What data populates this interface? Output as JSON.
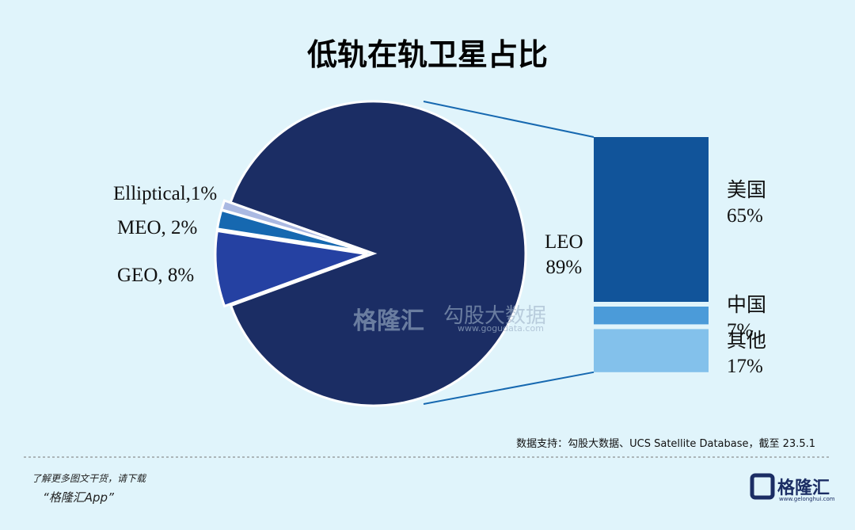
{
  "title": "低轨在轨卫星占比",
  "chart_data": [
    {
      "type": "pie",
      "categories": [
        "LEO",
        "GEO",
        "MEO",
        "Elliptical"
      ],
      "values": [
        89,
        8,
        2,
        1
      ],
      "value_labels": [
        "89%",
        "8%",
        "2%",
        "1%"
      ],
      "labels": [
        "LEO\n89%",
        "GEO, 8%",
        "MEO, 2%",
        "Elliptical,1%"
      ],
      "colors": [
        "#1b2d64",
        "#2541a2",
        "#1668b0",
        "#aab9e2"
      ]
    },
    {
      "type": "stacked-bar",
      "categories": [
        "美国",
        "中国",
        "其他"
      ],
      "values": [
        65,
        7,
        17
      ],
      "value_labels": [
        "65%",
        "7%",
        "17%"
      ],
      "colors": [
        "#11549a",
        "#4b9bd9",
        "#83c1eb"
      ]
    }
  ],
  "source": "数据支持：勾股大数据、UCS Satellite Database，截至 23.5.1",
  "watermark": {
    "brand": "格隆汇",
    "name": "勾股大数据",
    "url": "www.gogudata.com"
  },
  "footer": {
    "line1": "了解更多图文干货，请下载",
    "line2": "“格隆汇App”",
    "logo": "格隆汇",
    "logo_url": "www.gelonghui.com"
  }
}
